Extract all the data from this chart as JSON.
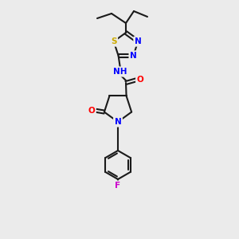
{
  "bg_color": "#ebebeb",
  "bond_color": "#1a1a1a",
  "atom_colors": {
    "N": "#0000ff",
    "O": "#ff0000",
    "S": "#ccaa00",
    "F": "#cc00cc",
    "C": "#1a1a1a"
  },
  "figsize": [
    3.0,
    3.0
  ],
  "dpi": 100
}
